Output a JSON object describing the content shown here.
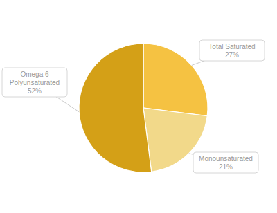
{
  "chart_data": {
    "type": "pie",
    "categories": [
      "Total Saturated",
      "Monounsaturated",
      "Omega 6\nPolyunsaturated"
    ],
    "values": [
      27,
      21,
      52
    ],
    "value_labels": [
      "27%",
      "21%",
      "52%"
    ],
    "colors": [
      "#F5C242",
      "#F2D98A",
      "#D4A017"
    ]
  }
}
